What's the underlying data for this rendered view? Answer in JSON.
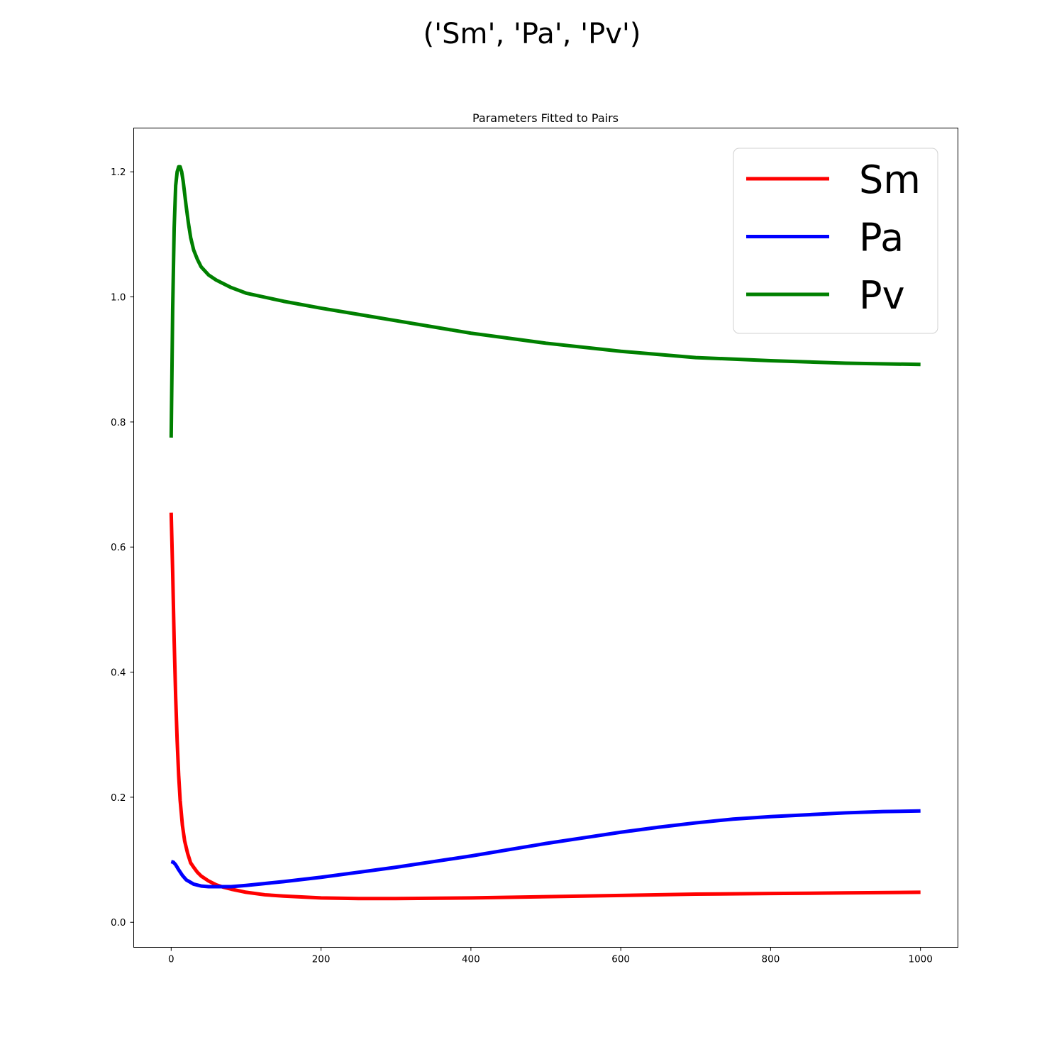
{
  "figure": {
    "suptitle": "('Sm', 'Pa', 'Pv')"
  },
  "chart_data": {
    "type": "line",
    "title": "Parameters Fitted to Pairs",
    "xlabel": "",
    "ylabel": "",
    "xlim": [
      -50,
      1050
    ],
    "ylim": [
      -0.04,
      1.27
    ],
    "xticks": [
      0,
      200,
      400,
      600,
      800,
      1000
    ],
    "yticks": [
      0.0,
      0.2,
      0.4,
      0.6,
      0.8,
      1.0,
      1.2
    ],
    "xtick_labels": [
      "0",
      "200",
      "400",
      "600",
      "800",
      "1000"
    ],
    "ytick_labels": [
      "0.0",
      "0.2",
      "0.4",
      "0.6",
      "0.8",
      "1.0",
      "1.2"
    ],
    "grid": false,
    "legend_position": "top-right",
    "series": [
      {
        "name": "Sm",
        "color": "#ff0000",
        "x": [
          0,
          2,
          4,
          6,
          8,
          10,
          12,
          15,
          18,
          22,
          26,
          30,
          35,
          40,
          50,
          60,
          70,
          80,
          100,
          125,
          150,
          200,
          250,
          300,
          400,
          500,
          600,
          700,
          800,
          900,
          1000
        ],
        "y": [
          0.655,
          0.56,
          0.45,
          0.36,
          0.29,
          0.235,
          0.195,
          0.155,
          0.13,
          0.11,
          0.095,
          0.088,
          0.08,
          0.074,
          0.066,
          0.06,
          0.056,
          0.053,
          0.048,
          0.044,
          0.042,
          0.039,
          0.038,
          0.038,
          0.039,
          0.041,
          0.043,
          0.045,
          0.046,
          0.047,
          0.048
        ]
      },
      {
        "name": "Pa",
        "color": "#0000ff",
        "x": [
          0,
          3,
          6,
          10,
          15,
          20,
          30,
          40,
          50,
          60,
          70,
          80,
          100,
          150,
          200,
          250,
          300,
          350,
          400,
          450,
          500,
          550,
          600,
          650,
          700,
          750,
          800,
          850,
          900,
          950,
          1000
        ],
        "y": [
          0.097,
          0.096,
          0.092,
          0.084,
          0.075,
          0.068,
          0.061,
          0.058,
          0.057,
          0.057,
          0.057,
          0.057,
          0.059,
          0.065,
          0.072,
          0.08,
          0.088,
          0.097,
          0.106,
          0.116,
          0.126,
          0.135,
          0.144,
          0.152,
          0.159,
          0.165,
          0.169,
          0.172,
          0.175,
          0.177,
          0.178
        ]
      },
      {
        "name": "Pv",
        "color": "#008000",
        "x": [
          0,
          2,
          4,
          6,
          8,
          10,
          12,
          14,
          16,
          18,
          20,
          23,
          26,
          30,
          35,
          40,
          50,
          60,
          80,
          100,
          150,
          200,
          300,
          400,
          500,
          600,
          700,
          800,
          900,
          1000
        ],
        "y": [
          0.775,
          0.98,
          1.11,
          1.178,
          1.2,
          1.208,
          1.208,
          1.2,
          1.185,
          1.165,
          1.145,
          1.118,
          1.095,
          1.075,
          1.06,
          1.048,
          1.035,
          1.027,
          1.015,
          1.006,
          0.993,
          0.982,
          0.962,
          0.942,
          0.926,
          0.913,
          0.903,
          0.898,
          0.894,
          0.892
        ]
      }
    ]
  }
}
